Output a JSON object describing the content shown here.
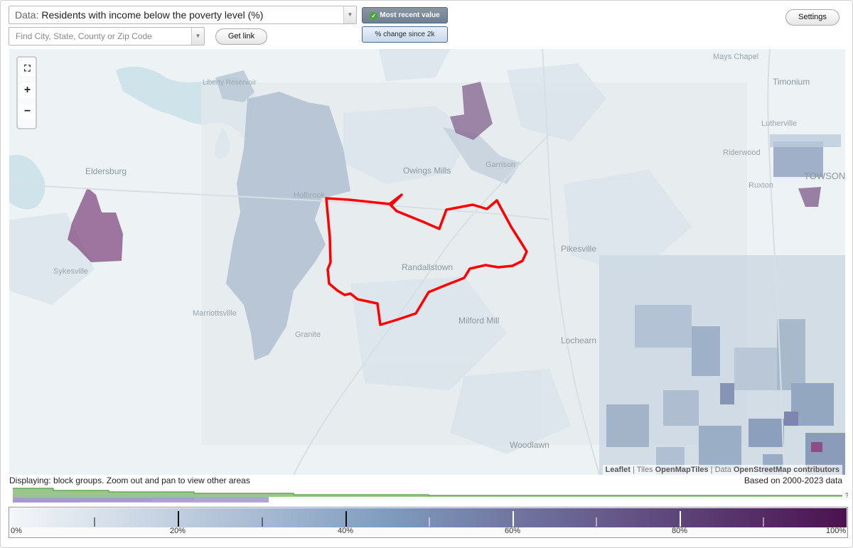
{
  "toolbar": {
    "data_prefix": "Data:",
    "data_value": "Residents with income below the poverty level (%)",
    "search_placeholder": "Find City, State, County or Zip Code",
    "get_link_label": "Get link",
    "mode_recent_label": "Most recent value",
    "mode_change_label": "% change since 2k",
    "settings_label": "Settings"
  },
  "map": {
    "places": [
      "Mays Chapel",
      "Timonium",
      "Lutherville",
      "Eldersburg",
      "Owings Mills",
      "Garrison",
      "Riderwood",
      "TOWSON",
      "Holbrook",
      "Ruxton",
      "Pikesville",
      "Randallstown",
      "Sykesville",
      "Marriottsville",
      "Milford Mill",
      "Lochearn",
      "Granite",
      "Woodlawn",
      "Liberty Reservoir"
    ],
    "attribution": {
      "leaflet": "Leaflet",
      "sep1": " | Tiles ",
      "tiles": "OpenMapTiles",
      "sep2": " | Data ",
      "data": "OpenStreetMap contributors"
    },
    "icons": [
      "fit-extent-icon",
      "zoom-in-icon",
      "zoom-out-icon"
    ]
  },
  "status": {
    "displaying": "Displaying: block groups. Zoom out and pan to view other areas",
    "based_on": "Based on 2000-2023 data",
    "histogram_marker": "?"
  },
  "legend": {
    "labels": [
      "0%",
      "20%",
      "40%",
      "60%",
      "80%",
      "100%"
    ],
    "color_low": "#f4f6f8",
    "color_mid": "#7f9cbf",
    "color_high": "#4b1250"
  },
  "colors": {
    "highlight_outline": "#ff0000",
    "high_poverty": "#8e5e8e",
    "low_poverty": "#a9b9cc"
  }
}
